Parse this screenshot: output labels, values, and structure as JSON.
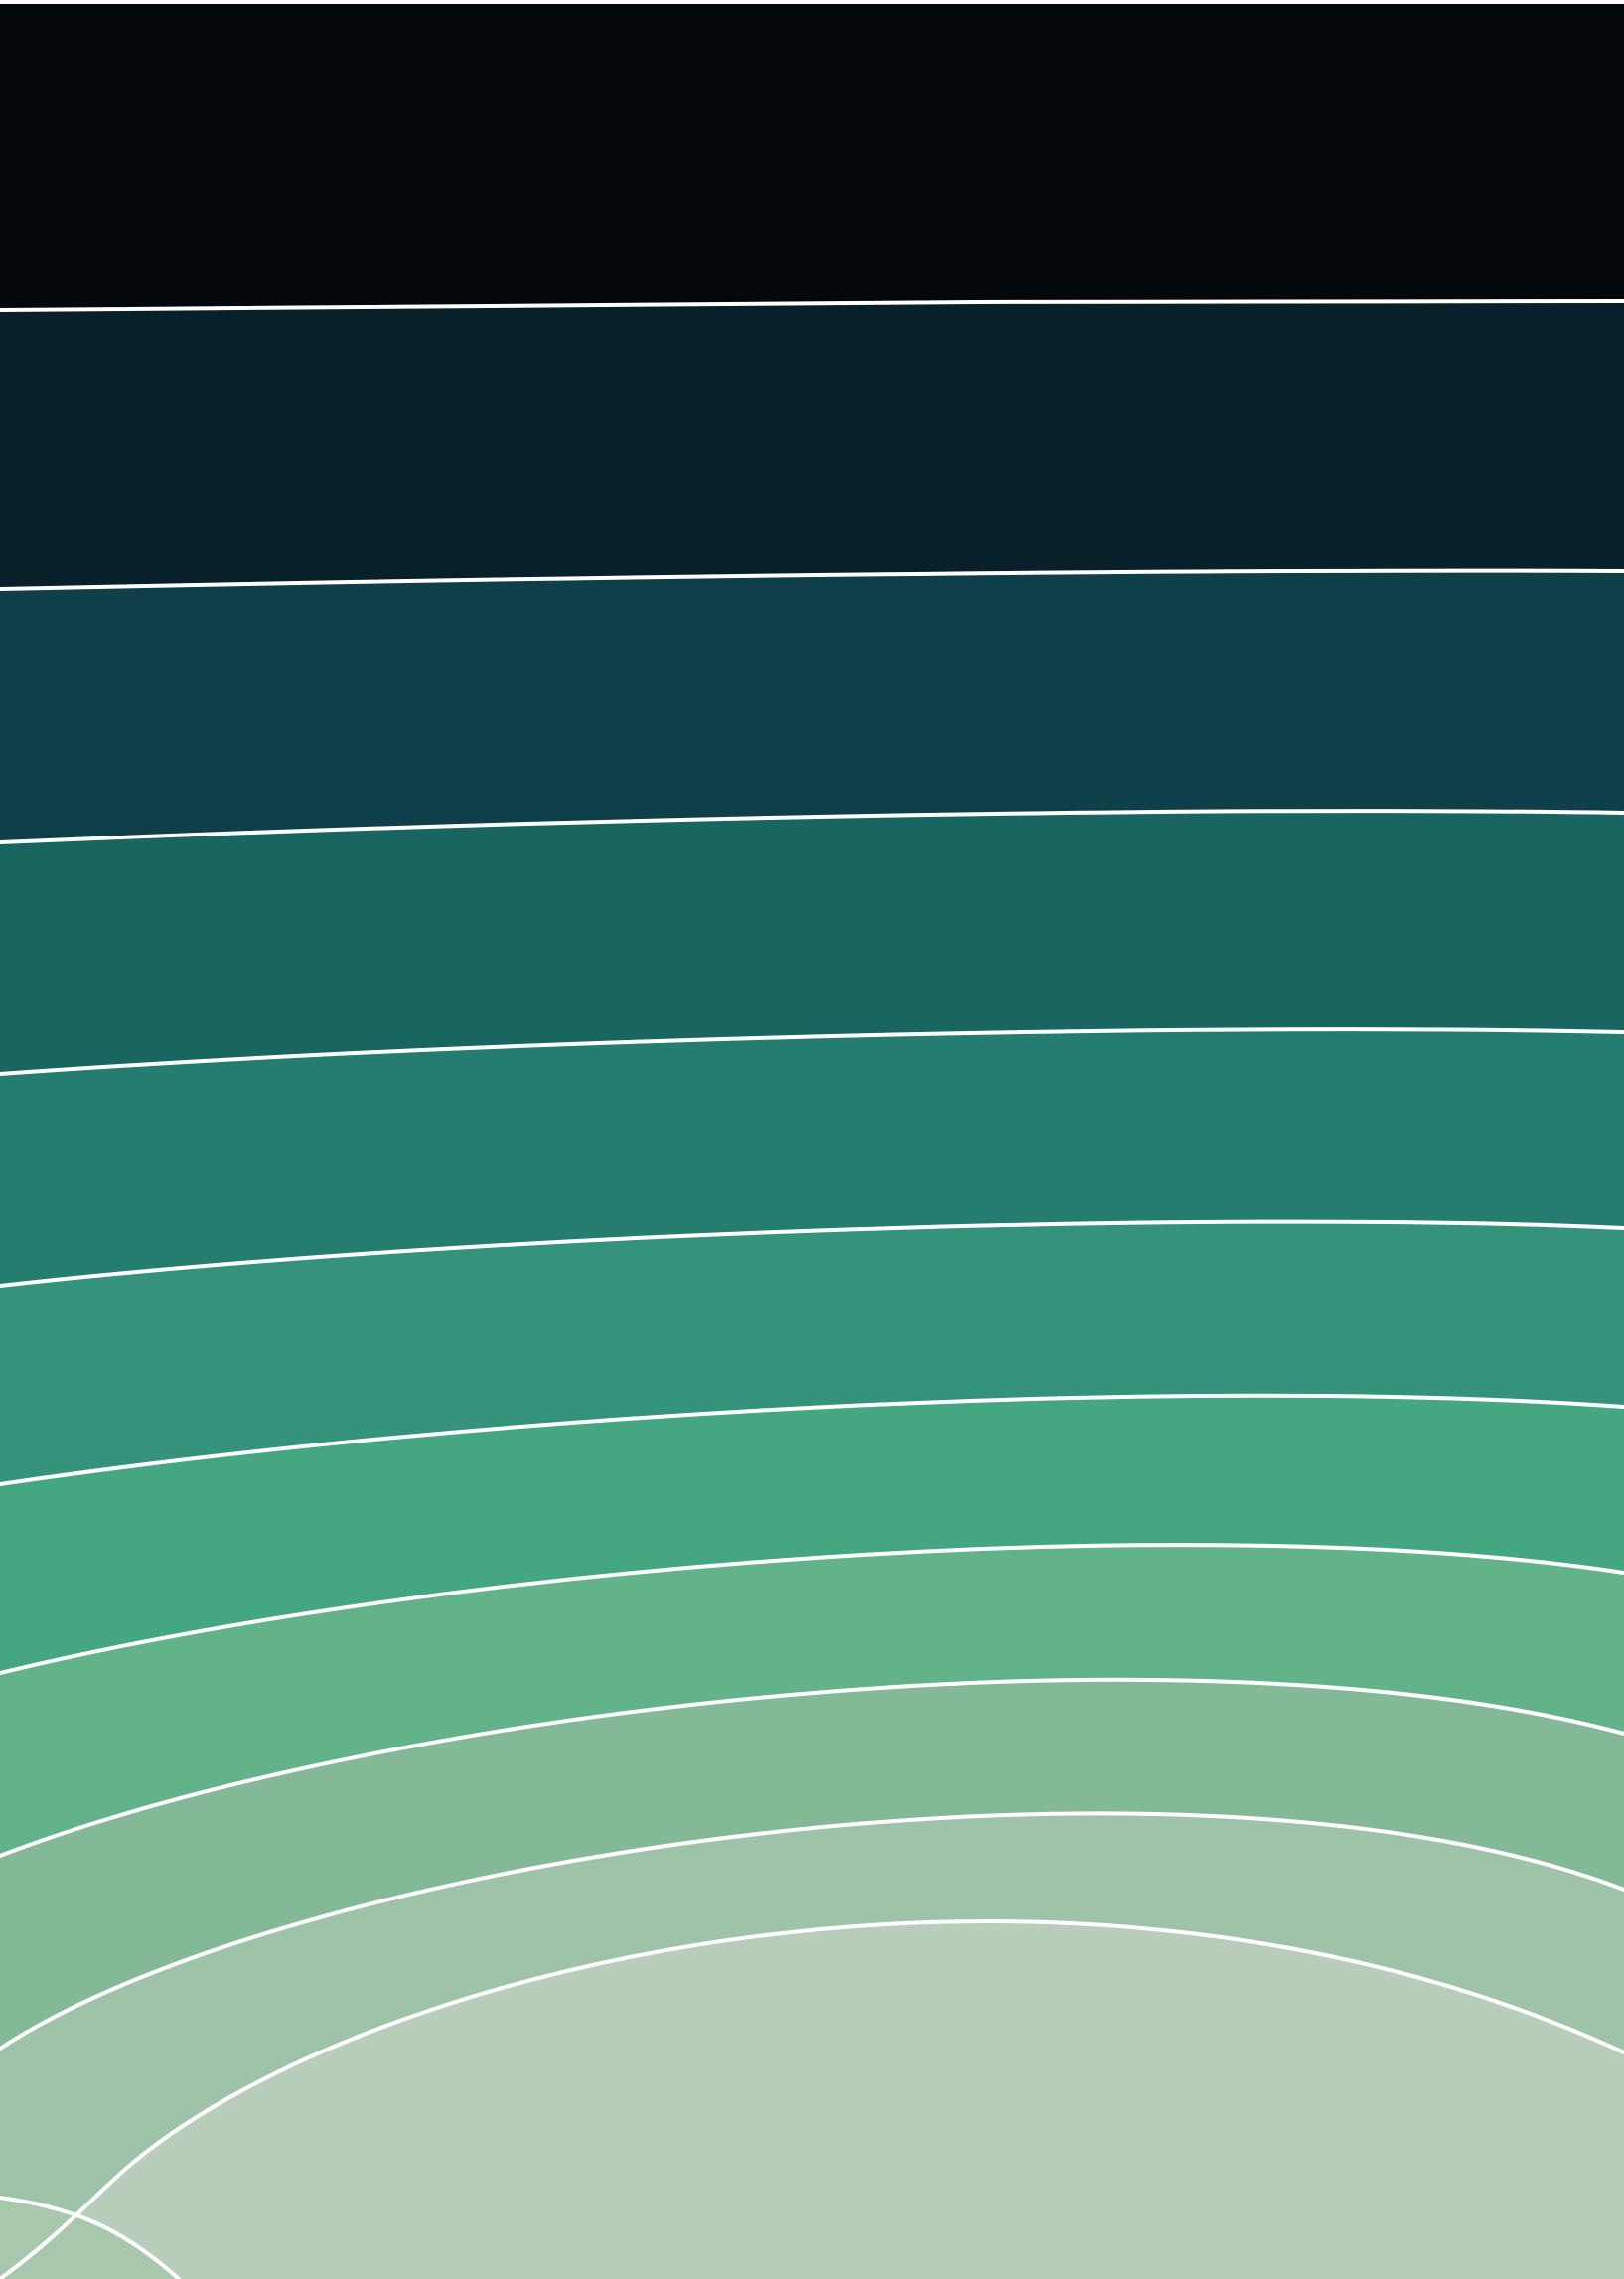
{
  "artwork": {
    "subject": "contour-bands",
    "bands": [
      {
        "id": "band-1",
        "color": "#02080c"
      },
      {
        "id": "band-2",
        "color": "#08202a"
      },
      {
        "id": "band-3",
        "color": "#0f3f48"
      },
      {
        "id": "band-4",
        "color": "#196660"
      },
      {
        "id": "band-5",
        "color": "#257d6f"
      },
      {
        "id": "band-6",
        "color": "#35937b"
      },
      {
        "id": "band-7",
        "color": "#45a781"
      },
      {
        "id": "band-8",
        "color": "#62b38a"
      },
      {
        "id": "band-9",
        "color": "#83b997"
      },
      {
        "id": "band-10",
        "color": "#9fc3a9"
      },
      {
        "id": "band-11",
        "color": "#b8ceba"
      }
    ],
    "contour_line_color": "#ffffff"
  }
}
